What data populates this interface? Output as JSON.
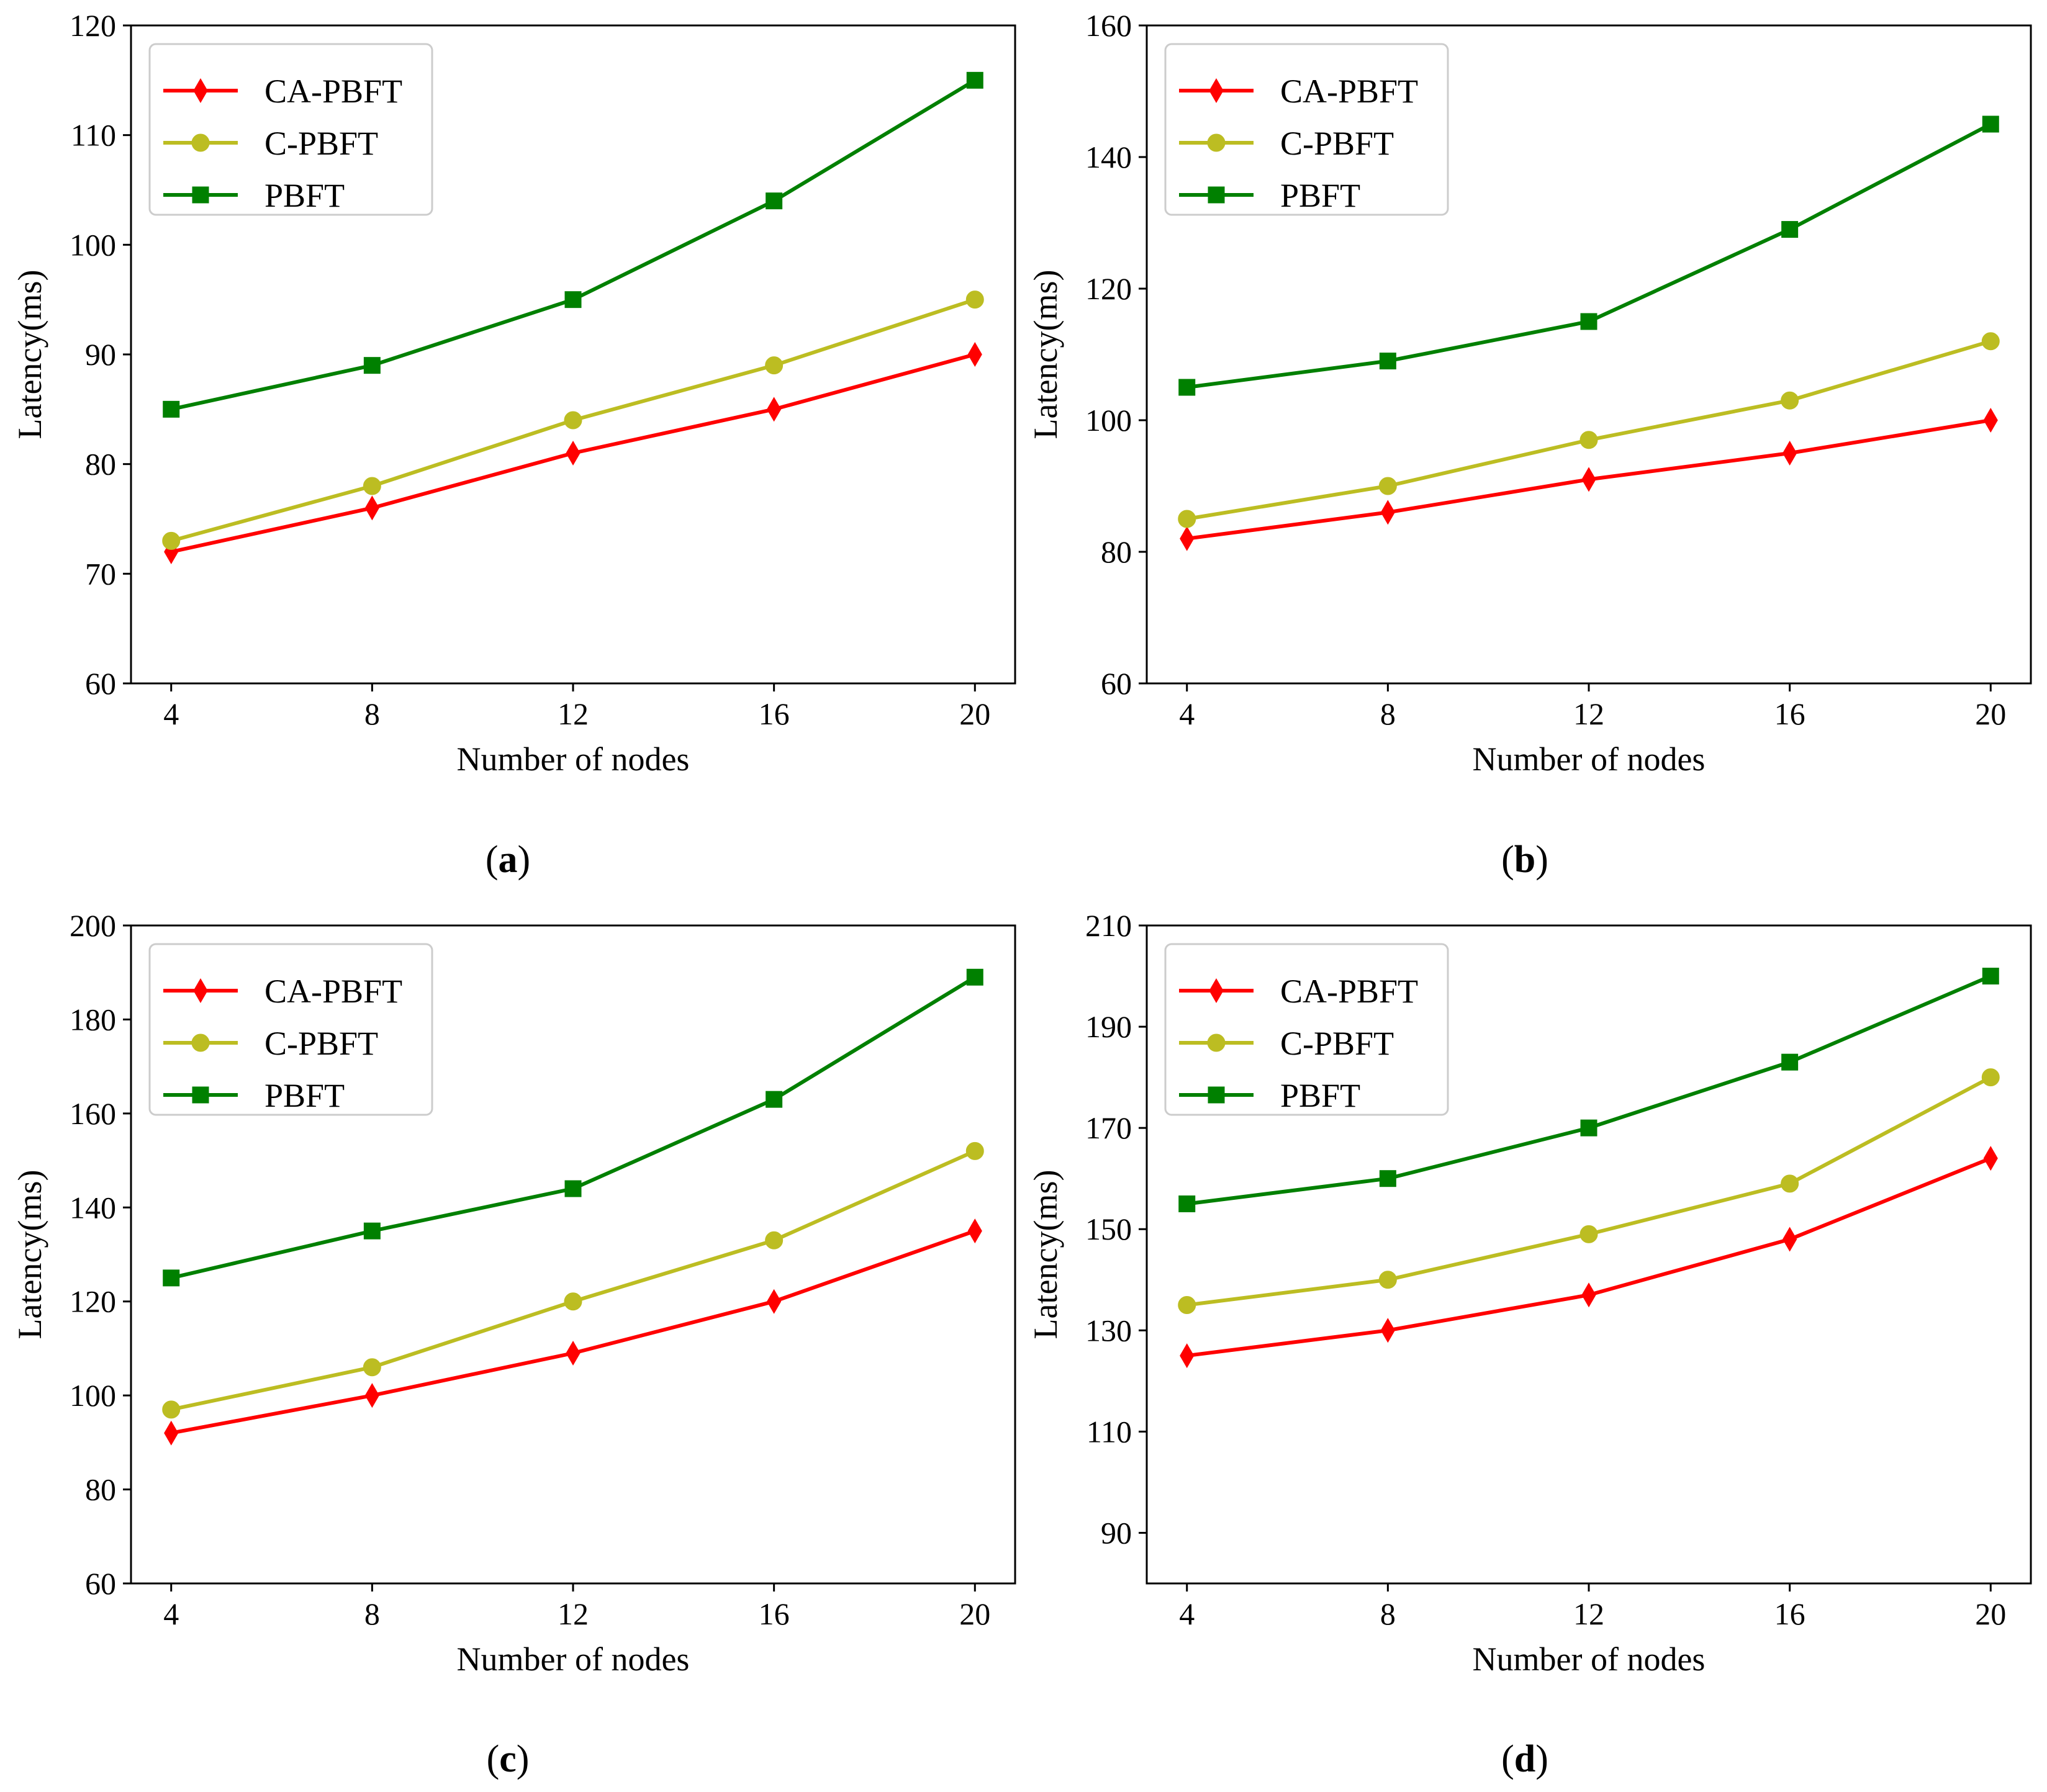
{
  "chart_data": [
    {
      "type": "line",
      "caption": "(a)",
      "caption_letter": "a",
      "xlabel": "Number of nodes",
      "ylabel": "Latency(ms)",
      "x": [
        4,
        8,
        12,
        16,
        20
      ],
      "xlim": [
        3.2,
        20.8
      ],
      "ylim": [
        60,
        120
      ],
      "yticks": [
        60,
        70,
        80,
        90,
        100,
        110,
        120
      ],
      "grid": false,
      "legend_position": "upper-left",
      "series": [
        {
          "name": "CA-PBFT",
          "color": "#ff0000",
          "marker": "diamond",
          "values": [
            72,
            76,
            81,
            85,
            90
          ]
        },
        {
          "name": "C-PBFT",
          "color": "#bcbd22",
          "marker": "circle",
          "values": [
            73,
            78,
            84,
            89,
            95
          ]
        },
        {
          "name": "PBFT",
          "color": "#008000",
          "marker": "square",
          "values": [
            85,
            89,
            95,
            104,
            115
          ]
        }
      ]
    },
    {
      "type": "line",
      "caption": "(b)",
      "caption_letter": "b",
      "xlabel": "Number of nodes",
      "ylabel": "Latency(ms)",
      "x": [
        4,
        8,
        12,
        16,
        20
      ],
      "xlim": [
        3.2,
        20.8
      ],
      "ylim": [
        60,
        160
      ],
      "yticks": [
        60,
        80,
        100,
        120,
        140,
        160
      ],
      "grid": false,
      "legend_position": "upper-left",
      "series": [
        {
          "name": "CA-PBFT",
          "color": "#ff0000",
          "marker": "diamond",
          "values": [
            82,
            86,
            91,
            95,
            100
          ]
        },
        {
          "name": "C-PBFT",
          "color": "#bcbd22",
          "marker": "circle",
          "values": [
            85,
            90,
            97,
            103,
            112
          ]
        },
        {
          "name": "PBFT",
          "color": "#008000",
          "marker": "square",
          "values": [
            105,
            109,
            115,
            129,
            145
          ]
        }
      ]
    },
    {
      "type": "line",
      "caption": "(c)",
      "caption_letter": "c",
      "xlabel": "Number of nodes",
      "ylabel": "Latency(ms)",
      "x": [
        4,
        8,
        12,
        16,
        20
      ],
      "xlim": [
        3.2,
        20.8
      ],
      "ylim": [
        60,
        200
      ],
      "yticks": [
        60,
        80,
        100,
        120,
        140,
        160,
        180,
        200
      ],
      "grid": false,
      "legend_position": "upper-left",
      "series": [
        {
          "name": "CA-PBFT",
          "color": "#ff0000",
          "marker": "diamond",
          "values": [
            92,
            100,
            109,
            120,
            135
          ]
        },
        {
          "name": "C-PBFT",
          "color": "#bcbd22",
          "marker": "circle",
          "values": [
            97,
            106,
            120,
            133,
            152
          ]
        },
        {
          "name": "PBFT",
          "color": "#008000",
          "marker": "square",
          "values": [
            125,
            135,
            144,
            163,
            189
          ]
        }
      ]
    },
    {
      "type": "line",
      "caption": "(d)",
      "caption_letter": "d",
      "xlabel": "Number of nodes",
      "ylabel": "Latency(ms)",
      "x": [
        4,
        8,
        12,
        16,
        20
      ],
      "xlim": [
        3.2,
        20.8
      ],
      "ylim": [
        80,
        210
      ],
      "yticks": [
        90,
        110,
        130,
        150,
        170,
        190,
        210
      ],
      "grid": false,
      "legend_position": "upper-left",
      "series": [
        {
          "name": "CA-PBFT",
          "color": "#ff0000",
          "marker": "diamond",
          "values": [
            125,
            130,
            137,
            148,
            164
          ]
        },
        {
          "name": "C-PBFT",
          "color": "#bcbd22",
          "marker": "circle",
          "values": [
            135,
            140,
            149,
            159,
            180
          ]
        },
        {
          "name": "PBFT",
          "color": "#008000",
          "marker": "square",
          "values": [
            155,
            160,
            170,
            183,
            200
          ]
        }
      ]
    }
  ]
}
